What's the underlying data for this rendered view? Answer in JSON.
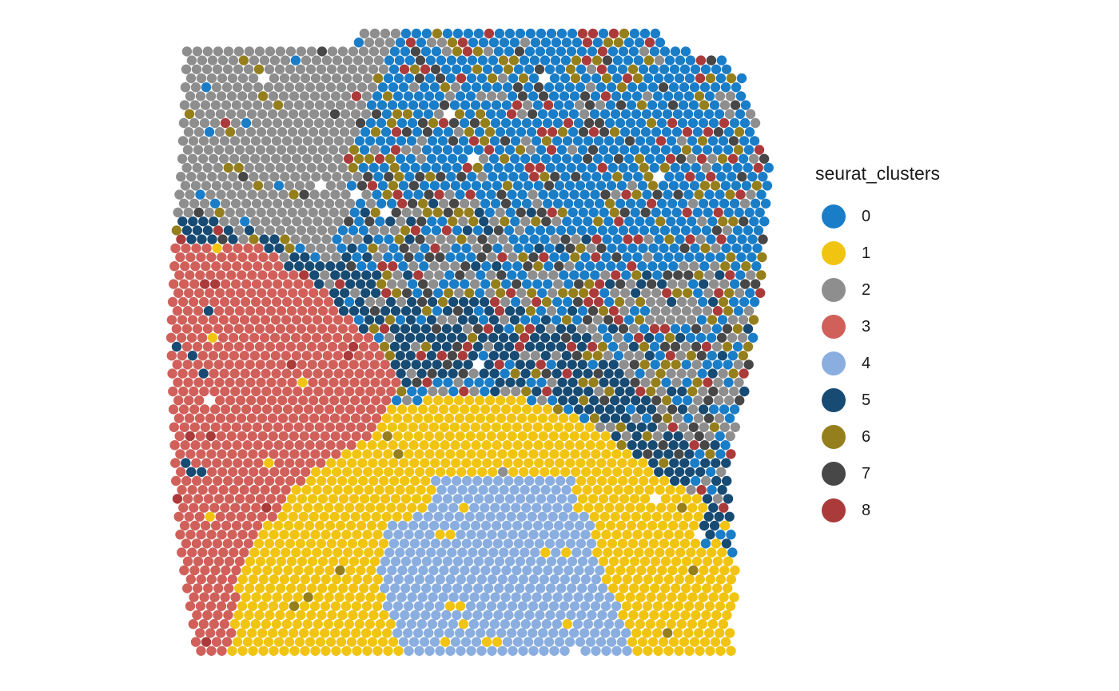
{
  "chart_data": {
    "type": "scatter",
    "title": "",
    "xlabel": "",
    "ylabel": "",
    "axes": "hidden",
    "grid": false,
    "legend": {
      "title": "seurat_clusters",
      "placement": "right"
    },
    "series": [
      {
        "name": "0",
        "color": "#1A7DC8"
      },
      {
        "name": "1",
        "color": "#F1C411"
      },
      {
        "name": "2",
        "color": "#8E8E8E"
      },
      {
        "name": "3",
        "color": "#D1605B"
      },
      {
        "name": "4",
        "color": "#8AAEDF"
      },
      {
        "name": "5",
        "color": "#174B73"
      },
      {
        "name": "6",
        "color": "#957F1C"
      },
      {
        "name": "7",
        "color": "#474747"
      },
      {
        "name": "8",
        "color": "#AB3B3B"
      }
    ]
  }
}
